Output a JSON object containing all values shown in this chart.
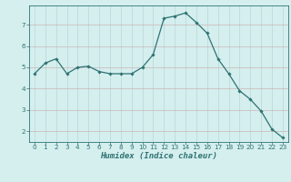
{
  "x": [
    0,
    1,
    2,
    3,
    4,
    5,
    6,
    7,
    8,
    9,
    10,
    11,
    12,
    13,
    14,
    15,
    16,
    17,
    18,
    19,
    20,
    21,
    22,
    23
  ],
  "y": [
    4.7,
    5.2,
    5.4,
    4.7,
    5.0,
    5.05,
    4.8,
    4.7,
    4.7,
    4.7,
    5.0,
    5.6,
    7.3,
    7.4,
    7.55,
    7.1,
    6.6,
    5.4,
    4.7,
    3.9,
    3.5,
    2.95,
    2.1,
    1.7
  ],
  "line_color": "#2e7373",
  "marker": "D",
  "marker_size": 1.8,
  "linewidth": 0.9,
  "xlabel": "Humidex (Indice chaleur)",
  "xlabel_fontsize": 6.5,
  "bg_color": "#d5eeee",
  "grid_color": "#b8d8d8",
  "tick_color": "#2e7373",
  "xlim": [
    -0.5,
    23.5
  ],
  "ylim": [
    1.5,
    7.9
  ],
  "yticks": [
    2,
    3,
    4,
    5,
    6,
    7
  ],
  "xticks": [
    0,
    1,
    2,
    3,
    4,
    5,
    6,
    7,
    8,
    9,
    10,
    11,
    12,
    13,
    14,
    15,
    16,
    17,
    18,
    19,
    20,
    21,
    22,
    23
  ],
  "tick_fontsize": 5.2,
  "spine_color": "#2e7373"
}
